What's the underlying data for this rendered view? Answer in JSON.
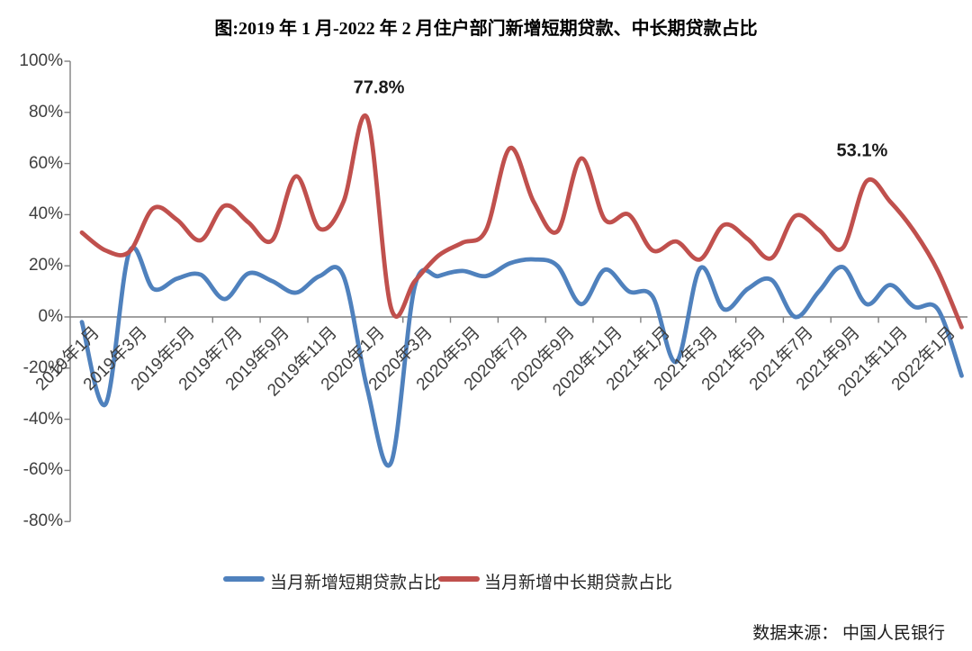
{
  "title": "图:2019 年 1 月-2022 年 2 月住户部门新增短期贷款、中长期贷款占比",
  "source_note": "数据来源： 中国人民银行",
  "chart_data": {
    "type": "line",
    "smooth": true,
    "grid": false,
    "legend_position": "bottom",
    "axis_color": "#808080",
    "ylim": [
      -80,
      100
    ],
    "y_tick_step": 20,
    "y_tick_labels": [
      "100%",
      "80%",
      "60%",
      "40%",
      "20%",
      "0%",
      "-20%",
      "-40%",
      "-60%",
      "-80%"
    ],
    "x_label_every": 2,
    "categories": [
      "2019年1月",
      "2019年2月",
      "2019年3月",
      "2019年4月",
      "2019年5月",
      "2019年6月",
      "2019年7月",
      "2019年8月",
      "2019年9月",
      "2019年10月",
      "2019年11月",
      "2019年12月",
      "2020年1月",
      "2020年2月",
      "2020年3月",
      "2020年4月",
      "2020年5月",
      "2020年6月",
      "2020年7月",
      "2020年8月",
      "2020年9月",
      "2020年10月",
      "2020年11月",
      "2020年12月",
      "2021年1月",
      "2021年2月",
      "2021年3月",
      "2021年4月",
      "2021年5月",
      "2021年6月",
      "2021年7月",
      "2021年8月",
      "2021年9月",
      "2021年10月",
      "2021年11月",
      "2021年12月",
      "2022年1月",
      "2022年2月"
    ],
    "series": [
      {
        "name": "当月新增短期贷款占比",
        "color": "#4F81BD",
        "values": [
          -2,
          -34,
          25.5,
          11,
          15,
          16.5,
          7,
          17,
          14,
          9.5,
          16,
          16,
          -28,
          -57,
          12,
          16,
          18,
          16,
          21,
          22.5,
          20,
          5,
          18.5,
          10,
          8,
          -17.5,
          19,
          3,
          11,
          14.5,
          0,
          10,
          19.5,
          5,
          12.5,
          4,
          3,
          -23
        ]
      },
      {
        "name": "当月新增中长期贷款占比",
        "color": "#C0504D",
        "values": [
          33,
          26,
          25.5,
          42.5,
          38,
          30,
          43.5,
          37,
          30,
          55,
          34.5,
          45,
          77.8,
          3.5,
          14,
          24,
          29,
          34,
          66,
          45,
          33.5,
          62,
          38,
          40,
          26,
          29.5,
          22.5,
          36,
          30.5,
          23,
          39.5,
          34,
          27,
          53.1,
          45,
          33.5,
          18,
          -4
        ]
      }
    ],
    "annotations": [
      {
        "label": "77.8%",
        "category": "2020年1月",
        "value": 77.8
      },
      {
        "label": "53.1%",
        "category": "2021年10月",
        "value": 53.1
      }
    ]
  }
}
